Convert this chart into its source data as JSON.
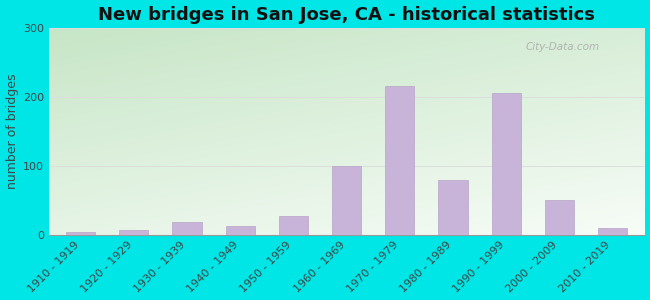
{
  "title": "New bridges in San Jose, CA - historical statistics",
  "ylabel": "number of bridges",
  "categories": [
    "1910 - 1919",
    "1920 - 1929",
    "1930 - 1939",
    "1940 - 1949",
    "1950 - 1959",
    "1960 - 1969",
    "1970 - 1979",
    "1980 - 1989",
    "1990 - 1999",
    "2000 - 2009",
    "2010 - 2019"
  ],
  "values": [
    4,
    7,
    18,
    12,
    27,
    100,
    215,
    80,
    205,
    50,
    10
  ],
  "bar_color": "#c8b4d8",
  "bar_edge_color": "#b8a4c8",
  "background_color": "#00e5e5",
  "ylim": [
    0,
    300
  ],
  "yticks": [
    0,
    100,
    200,
    300
  ],
  "grid_color": "#dddddd",
  "title_fontsize": 13,
  "axis_label_fontsize": 9,
  "tick_label_fontsize": 8,
  "watermark": "City-Data.com"
}
